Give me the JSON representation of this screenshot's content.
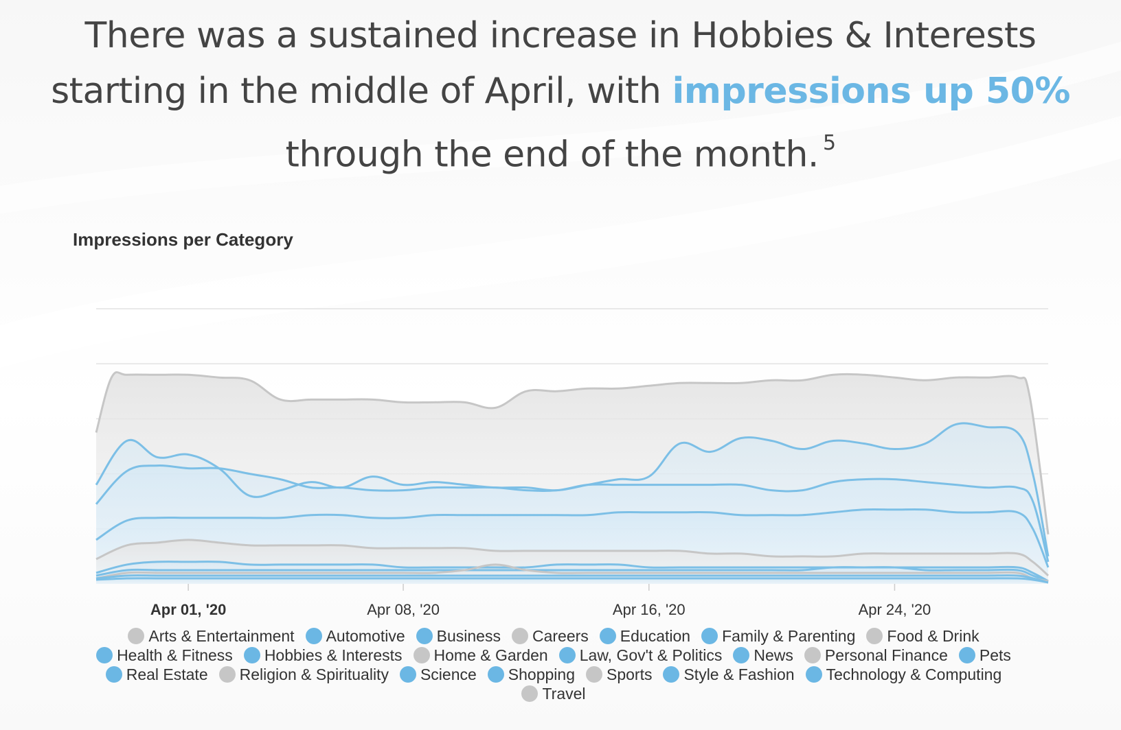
{
  "headline": {
    "line1": "There was a sustained increase in Hobbies & Interests",
    "line2_prefix": "starting in the middle of April, with ",
    "line2_highlight": "impressions up 50%",
    "line3": "through the end of the month.",
    "footnote": "5"
  },
  "colors": {
    "highlight": "#6bb7e4",
    "series_gray": "#c6c6c6",
    "series_blue": "#7cbfe6",
    "legend_blue": "#6bb7e4",
    "grid": "#e2e2e2"
  },
  "chart_data": {
    "type": "area",
    "title": "Impressions per Category",
    "xlabel": "",
    "ylabel": "",
    "x_ticks": [
      "Apr 01, '20",
      "Apr 08, '20",
      "Apr 16, '20",
      "Apr 24, '20"
    ],
    "x_tick_days": [
      1,
      8,
      16,
      24
    ],
    "x_range_days": [
      -2,
      29
    ],
    "ylim": [
      0,
      100
    ],
    "gridlines": [
      20,
      40,
      60,
      80,
      100
    ],
    "y_tick_labels": "none",
    "legend": "bottom",
    "grid": true,
    "series": [
      {
        "name": "Arts & Entertainment",
        "color": "gray",
        "x": [
          -2,
          -1.5,
          -1,
          0,
          1,
          2,
          3,
          4,
          5,
          6,
          7,
          8,
          9,
          10,
          11,
          12,
          13,
          14,
          15,
          16,
          17,
          18,
          19,
          20,
          21,
          22,
          23,
          24,
          25,
          26,
          27,
          28,
          28.4,
          29
        ],
        "y": [
          55,
          75,
          76,
          76,
          76,
          75,
          74,
          67,
          67,
          67,
          67,
          66,
          66,
          66,
          64,
          70,
          70,
          71,
          71,
          72,
          73,
          73,
          73,
          74,
          74,
          76,
          76,
          75,
          74,
          75,
          75,
          75,
          68,
          18
        ]
      },
      {
        "name": "Hobbies & Interests",
        "color": "blue",
        "x": [
          -2,
          -1,
          0,
          1,
          2,
          3,
          4,
          5,
          6,
          7,
          8,
          9,
          10,
          11,
          12,
          13,
          14,
          15,
          16,
          17,
          18,
          19,
          20,
          21,
          22,
          23,
          24,
          25,
          26,
          27,
          28,
          28.5,
          29
        ],
        "y": [
          36,
          52,
          46,
          47,
          42,
          32,
          34,
          37,
          35,
          39,
          36,
          37,
          36,
          35,
          35,
          34,
          36,
          38,
          39,
          51,
          48,
          53,
          52,
          49,
          52,
          51,
          49,
          51,
          58,
          57,
          55,
          40,
          10
        ]
      },
      {
        "name": "Business",
        "color": "blue",
        "x": [
          -2,
          -1,
          0,
          1,
          2,
          3,
          4,
          5,
          6,
          7,
          8,
          9,
          10,
          11,
          12,
          13,
          14,
          15,
          16,
          17,
          18,
          19,
          20,
          21,
          22,
          23,
          24,
          25,
          26,
          27,
          28,
          28.5,
          29
        ],
        "y": [
          29,
          41,
          43,
          42,
          42,
          40,
          38,
          35,
          35,
          34,
          34,
          35,
          35,
          35,
          34,
          34,
          36,
          36,
          36,
          36,
          36,
          36,
          34,
          34,
          37,
          38,
          38,
          37,
          36,
          35,
          35,
          30,
          8
        ]
      },
      {
        "name": "Health & Fitness",
        "color": "blue",
        "x": [
          -2,
          -1,
          0,
          1,
          2,
          3,
          4,
          5,
          6,
          7,
          8,
          9,
          10,
          11,
          12,
          13,
          14,
          15,
          16,
          17,
          18,
          19,
          20,
          21,
          22,
          23,
          24,
          25,
          26,
          27,
          28,
          28.5,
          29
        ],
        "y": [
          16,
          23,
          24,
          24,
          24,
          24,
          24,
          25,
          25,
          24,
          24,
          25,
          25,
          25,
          25,
          25,
          25,
          26,
          26,
          26,
          26,
          25,
          25,
          25,
          26,
          27,
          27,
          27,
          26,
          26,
          26,
          20,
          6
        ]
      },
      {
        "name": "Food & Drink",
        "color": "gray",
        "x": [
          -2,
          -1,
          0,
          1,
          2,
          3,
          4,
          5,
          6,
          7,
          8,
          9,
          10,
          11,
          12,
          13,
          14,
          15,
          16,
          17,
          18,
          19,
          20,
          21,
          22,
          23,
          24,
          25,
          26,
          27,
          28,
          28.5,
          29
        ],
        "y": [
          9,
          14,
          15,
          16,
          15,
          14,
          14,
          14,
          14,
          13,
          13,
          13,
          13,
          12,
          12,
          12,
          12,
          12,
          12,
          12,
          11,
          11,
          10,
          10,
          10,
          11,
          11,
          11,
          11,
          11,
          11,
          8,
          3
        ]
      },
      {
        "name": "Shopping",
        "color": "blue",
        "x": [
          -2,
          -1,
          0,
          1,
          2,
          3,
          4,
          5,
          6,
          7,
          8,
          9,
          10,
          11,
          12,
          13,
          14,
          15,
          16,
          17,
          18,
          19,
          20,
          21,
          22,
          23,
          24,
          25,
          26,
          27,
          28,
          28.5,
          29
        ],
        "y": [
          4,
          7,
          8,
          8,
          8,
          7,
          7,
          7,
          7,
          7,
          6,
          6,
          6,
          6,
          6,
          7,
          7,
          7,
          6,
          6,
          6,
          6,
          6,
          6,
          6,
          6,
          6,
          6,
          6,
          6,
          6,
          4,
          1
        ]
      },
      {
        "name": "Style & Fashion",
        "color": "blue",
        "x": [
          -2,
          -1,
          0,
          1,
          2,
          3,
          4,
          5,
          6,
          7,
          8,
          9,
          10,
          11,
          12,
          13,
          14,
          15,
          16,
          17,
          18,
          19,
          20,
          21,
          22,
          23,
          24,
          25,
          26,
          27,
          28,
          28.5,
          29
        ],
        "y": [
          3,
          5,
          5,
          5,
          5,
          5,
          5,
          5,
          5,
          5,
          5,
          5,
          5,
          5,
          5,
          5,
          5,
          5,
          5,
          5,
          5,
          5,
          5,
          5,
          6,
          6,
          6,
          5,
          5,
          5,
          5,
          3,
          1
        ]
      },
      {
        "name": "Travel",
        "color": "gray",
        "x": [
          -2,
          -1,
          0,
          1,
          2,
          3,
          4,
          5,
          6,
          7,
          8,
          9,
          10,
          11,
          12,
          13,
          14,
          15,
          16,
          17,
          18,
          19,
          20,
          21,
          22,
          23,
          24,
          25,
          26,
          27,
          28,
          28.5,
          29
        ],
        "y": [
          2,
          4,
          4,
          4,
          4,
          4,
          4,
          4,
          4,
          4,
          4,
          4,
          5,
          7,
          5,
          4,
          4,
          4,
          4,
          4,
          4,
          4,
          4,
          4,
          4,
          4,
          4,
          4,
          4,
          4,
          4,
          2,
          1
        ]
      },
      {
        "name": "News",
        "color": "blue",
        "x": [
          -2,
          -1,
          0,
          1,
          2,
          3,
          4,
          5,
          6,
          7,
          8,
          9,
          10,
          11,
          12,
          13,
          14,
          15,
          16,
          17,
          18,
          19,
          20,
          21,
          22,
          23,
          24,
          25,
          26,
          27,
          28,
          28.5,
          29
        ],
        "y": [
          2,
          3,
          3,
          3,
          3,
          3,
          3,
          3,
          3,
          3,
          3,
          3,
          3,
          3,
          3,
          3,
          3,
          3,
          3,
          3,
          3,
          3,
          3,
          3,
          3,
          3,
          3,
          3,
          3,
          3,
          3,
          2,
          0.5
        ]
      },
      {
        "name": "Technology & Computing",
        "color": "blue",
        "x": [
          -2,
          -1,
          0,
          1,
          2,
          3,
          4,
          5,
          6,
          7,
          8,
          9,
          10,
          11,
          12,
          13,
          14,
          15,
          16,
          17,
          18,
          19,
          20,
          21,
          22,
          23,
          24,
          25,
          26,
          27,
          28,
          28.5,
          29
        ],
        "y": [
          1.5,
          2,
          2,
          2,
          2,
          2,
          2,
          2,
          2,
          2,
          2,
          2,
          2,
          2,
          2,
          2,
          2,
          2,
          2,
          2,
          2,
          2,
          2,
          2,
          2,
          2,
          2,
          2,
          2,
          2,
          2,
          1.5,
          0.5
        ]
      }
    ]
  },
  "legend": [
    {
      "label": "Arts & Entertainment",
      "color": "gray"
    },
    {
      "label": "Automotive",
      "color": "blue"
    },
    {
      "label": "Business",
      "color": "blue"
    },
    {
      "label": "Careers",
      "color": "gray"
    },
    {
      "label": "Education",
      "color": "blue"
    },
    {
      "label": "Family & Parenting",
      "color": "blue"
    },
    {
      "label": "Food & Drink",
      "color": "gray"
    },
    {
      "label": "Health & Fitness",
      "color": "blue"
    },
    {
      "label": "Hobbies & Interests",
      "color": "blue"
    },
    {
      "label": "Home & Garden",
      "color": "gray"
    },
    {
      "label": "Law, Gov't & Politics",
      "color": "blue"
    },
    {
      "label": "News",
      "color": "blue"
    },
    {
      "label": "Personal Finance",
      "color": "gray"
    },
    {
      "label": "Pets",
      "color": "blue"
    },
    {
      "label": "Real Estate",
      "color": "blue"
    },
    {
      "label": "Religion & Spirituality",
      "color": "gray"
    },
    {
      "label": "Science",
      "color": "blue"
    },
    {
      "label": "Shopping",
      "color": "blue"
    },
    {
      "label": "Sports",
      "color": "gray"
    },
    {
      "label": "Style & Fashion",
      "color": "blue"
    },
    {
      "label": "Technology & Computing",
      "color": "blue"
    },
    {
      "label": "Travel",
      "color": "gray"
    }
  ]
}
